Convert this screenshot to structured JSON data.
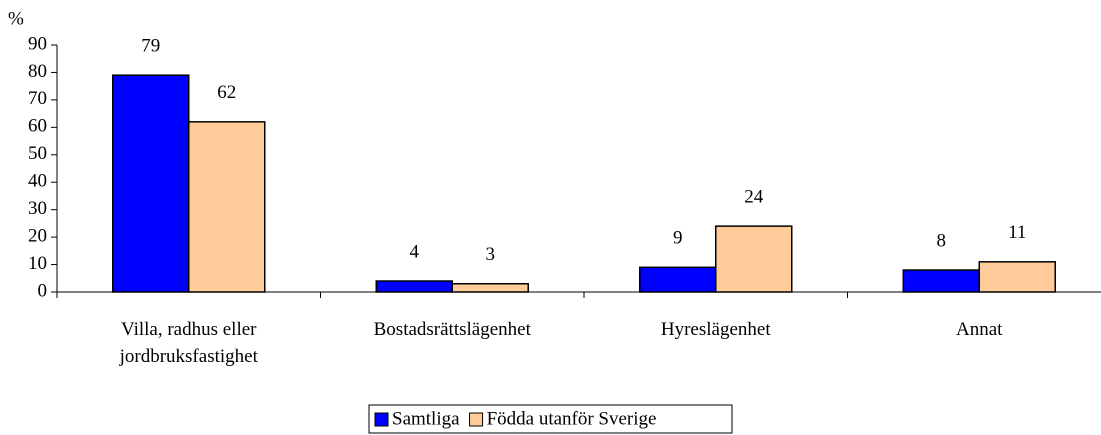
{
  "chart_data": {
    "type": "bar",
    "y_label": "%",
    "categories": [
      "Villa, radhus eller jordbruksfastighet",
      "Bostadsrättslägenhet",
      "Hyreslägenhet",
      "Annat"
    ],
    "series": [
      {
        "name": "Samtliga",
        "color": "#0000ff",
        "values": [
          79,
          4,
          9,
          8
        ]
      },
      {
        "name": "Födda utanför Sverige",
        "color": "#ffcc99",
        "values": [
          62,
          3,
          24,
          11
        ]
      }
    ],
    "ylim": [
      0,
      90
    ],
    "yticks": [
      0,
      10,
      20,
      30,
      40,
      50,
      60,
      70,
      80,
      90
    ],
    "legend": "bottom"
  }
}
